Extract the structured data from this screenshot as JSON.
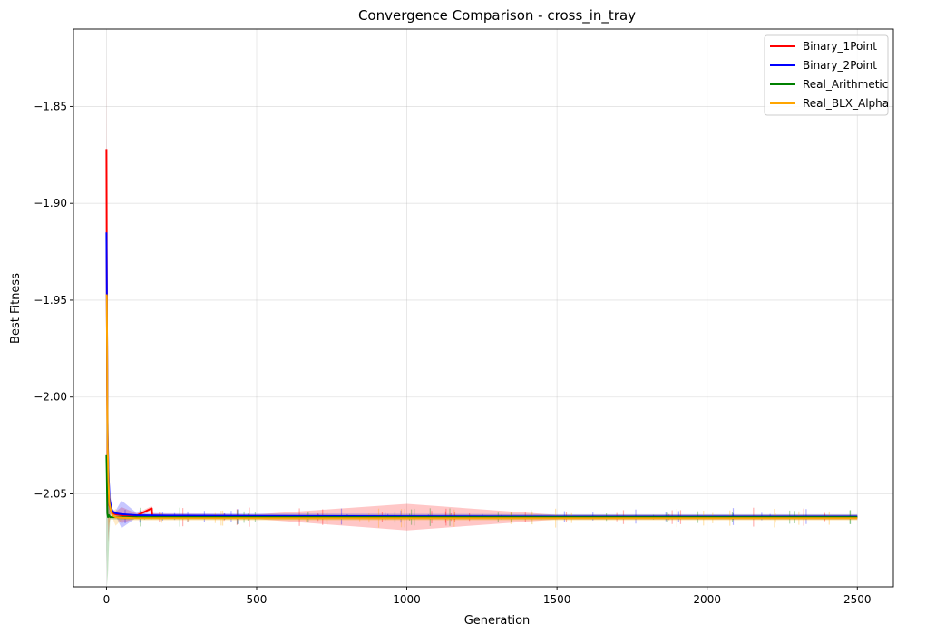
{
  "chart_data": {
    "type": "line",
    "title": "Convergence Comparison - cross_in_tray",
    "xlabel": "Generation",
    "ylabel": "Best Fitness",
    "xlim": [
      -110,
      2620
    ],
    "ylim": [
      -2.098,
      -1.81
    ],
    "xticks": [
      0,
      500,
      1000,
      1500,
      2000,
      2500
    ],
    "xtick_labels": [
      "0",
      "500",
      "1000",
      "1500",
      "2000",
      "2500"
    ],
    "yticks": [
      -1.85,
      -1.9,
      -1.95,
      -2.0,
      -2.05
    ],
    "ytick_labels": [
      "−1.85",
      "−1.90",
      "−1.95",
      "−2.00",
      "−2.05"
    ],
    "grid": true,
    "legend_position": "top-right",
    "series": [
      {
        "name": "Binary_1Point",
        "color": "#ff0000",
        "x": [
          0,
          1,
          2,
          3,
          4,
          6,
          8,
          10,
          15,
          20,
          30,
          50,
          100,
          150,
          151,
          152,
          200,
          500,
          1000,
          1500,
          2000,
          2500
        ],
        "y": [
          -1.872,
          -1.94,
          -1.98,
          -2.01,
          -2.03,
          -2.045,
          -2.052,
          -2.056,
          -2.059,
          -2.06,
          -2.0605,
          -2.061,
          -2.0613,
          -2.0575,
          -2.0575,
          -2.0612,
          -2.0615,
          -2.0618,
          -2.062,
          -2.062,
          -2.062,
          -2.062
        ]
      },
      {
        "name": "Binary_2Point",
        "color": "#0000ff",
        "x": [
          0,
          1,
          2,
          3,
          4,
          6,
          8,
          10,
          15,
          20,
          30,
          50,
          100,
          200,
          500,
          1000,
          1500,
          2000,
          2500
        ],
        "y": [
          -1.915,
          -1.945,
          -1.975,
          -2.0,
          -2.02,
          -2.035,
          -2.045,
          -2.052,
          -2.057,
          -2.059,
          -2.06,
          -2.0605,
          -2.061,
          -2.0612,
          -2.0614,
          -2.0615,
          -2.0617,
          -2.0617,
          -2.0617
        ]
      },
      {
        "name": "Real_Arithmetic",
        "color": "#008000",
        "x": [
          0,
          1,
          2,
          3,
          5,
          8,
          12,
          20,
          30,
          50,
          100,
          500,
          1000,
          1500,
          2000,
          2500
        ],
        "y": [
          -2.03,
          -2.04,
          -2.05,
          -2.06,
          -2.062,
          -2.061,
          -2.062,
          -2.062,
          -2.062,
          -2.062,
          -2.062,
          -2.062,
          -2.062,
          -2.062,
          -2.062,
          -2.062
        ]
      },
      {
        "name": "Real_BLX_Alpha",
        "color": "#ffa500",
        "x": [
          0,
          1,
          2,
          3,
          4,
          6,
          8,
          10,
          15,
          20,
          30,
          50,
          100,
          500,
          1000,
          1500,
          2000,
          2500
        ],
        "y": [
          -1.947,
          -1.948,
          -1.975,
          -2.005,
          -2.025,
          -2.04,
          -2.05,
          -2.055,
          -2.059,
          -2.061,
          -2.062,
          -2.0623,
          -2.0625,
          -2.0625,
          -2.0625,
          -2.0625,
          -2.0625,
          -2.0625
        ]
      }
    ]
  }
}
